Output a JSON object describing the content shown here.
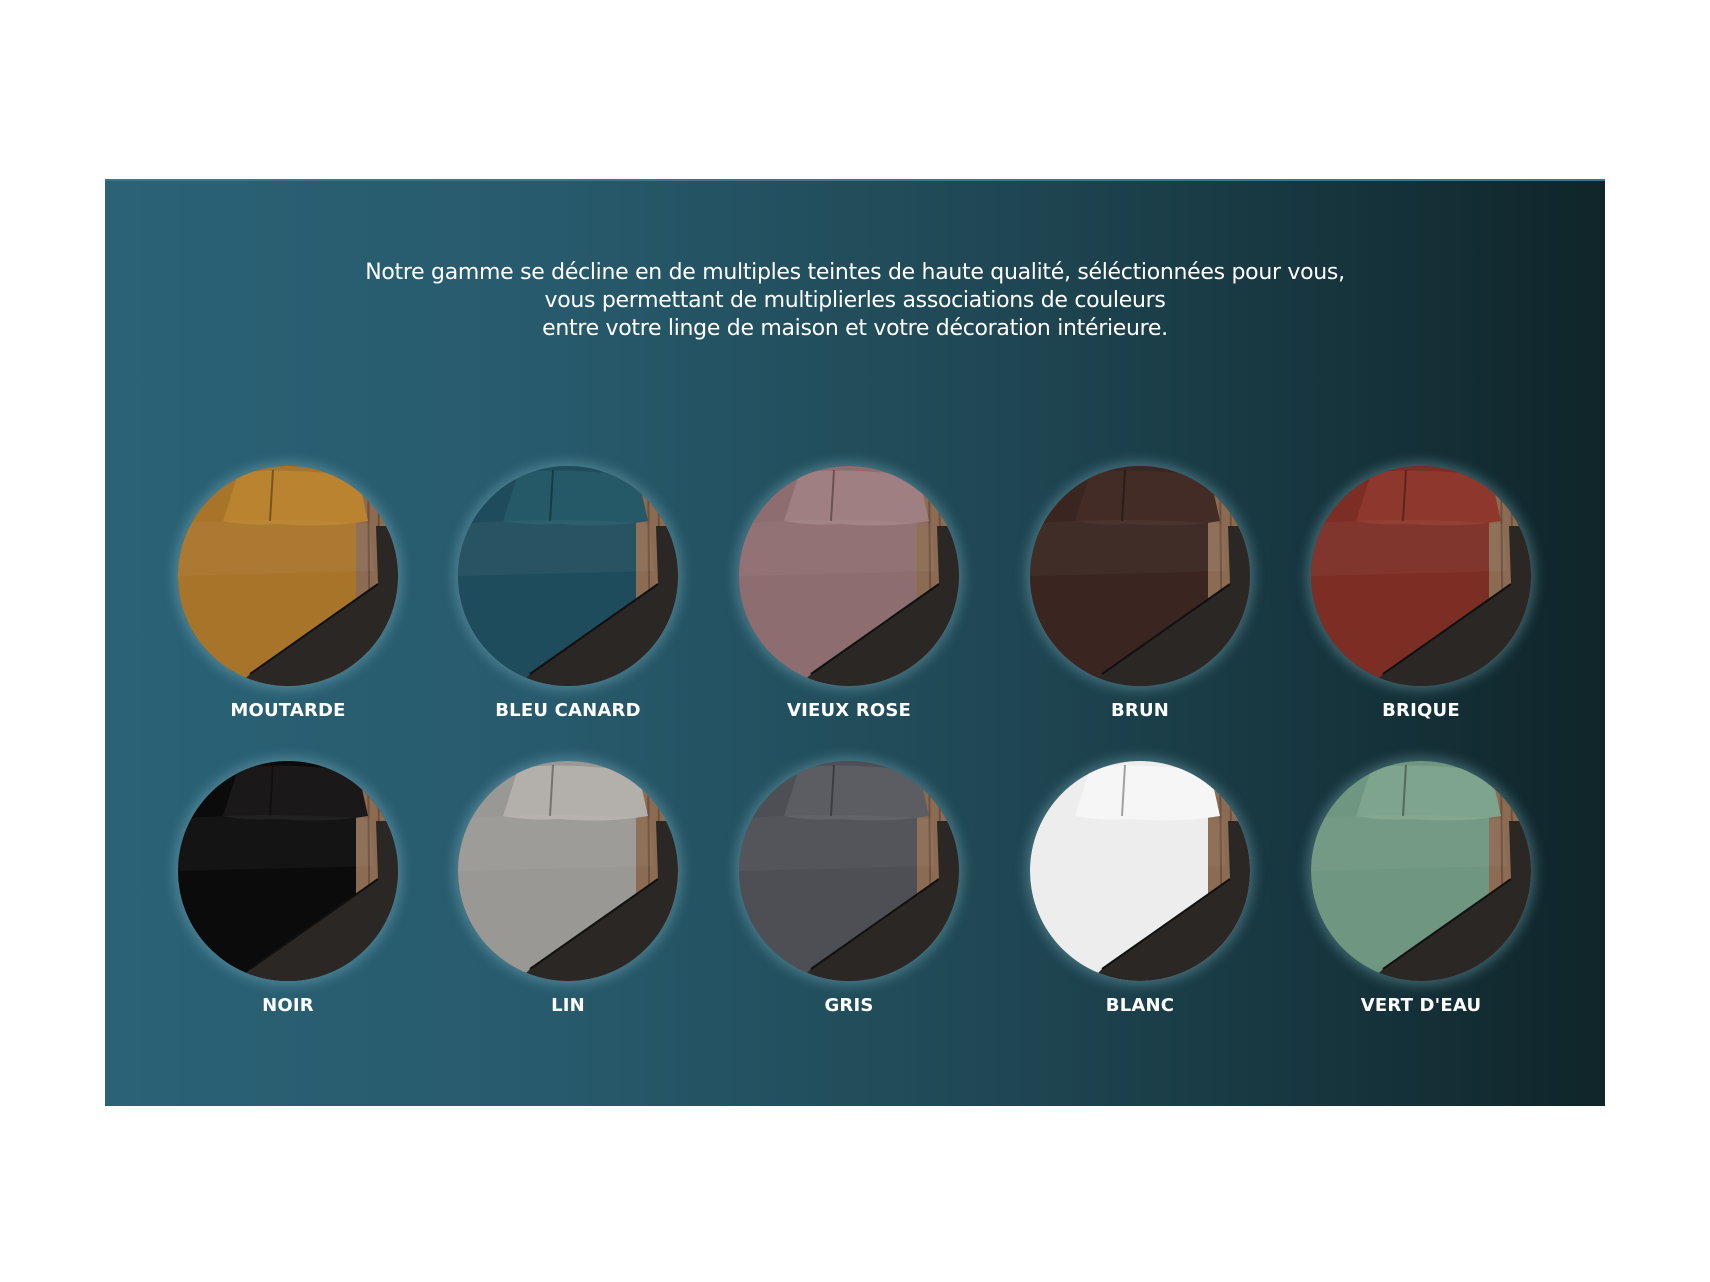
{
  "intro": {
    "lines": [
      "Notre gamme se décline en de multiples teintes de haute qualité, séléctionnées pour vous,",
      "vous permettant de multiplierles associations de couleurs",
      "entre votre linge de maison et votre décoration intérieure."
    ]
  },
  "swatches": [
    {
      "name": "MOUTARDE",
      "color": "#a8742a",
      "pillow": "#b9832f"
    },
    {
      "name": "BLEU CANARD",
      "color": "#1f4c5c",
      "pillow": "#255968"
    },
    {
      "name": "VIEUX ROSE",
      "color": "#8e6d70",
      "pillow": "#a07f82"
    },
    {
      "name": "BRUN",
      "color": "#3a2520",
      "pillow": "#442c26"
    },
    {
      "name": "BRIQUE",
      "color": "#7c2e25",
      "pillow": "#8e382d"
    },
    {
      "name": "NOIR",
      "color": "#0c0b0b",
      "pillow": "#1a1818"
    },
    {
      "name": "LIN",
      "color": "#9a9894",
      "pillow": "#b3b0ab"
    },
    {
      "name": "GRIS",
      "color": "#4e4f55",
      "pillow": "#5c5d63"
    },
    {
      "name": "BLANC",
      "color": "#ededed",
      "pillow": "#f6f6f6"
    },
    {
      "name": "VERT D'EAU",
      "color": "#6f9680",
      "pillow": "#7ea48d"
    }
  ]
}
